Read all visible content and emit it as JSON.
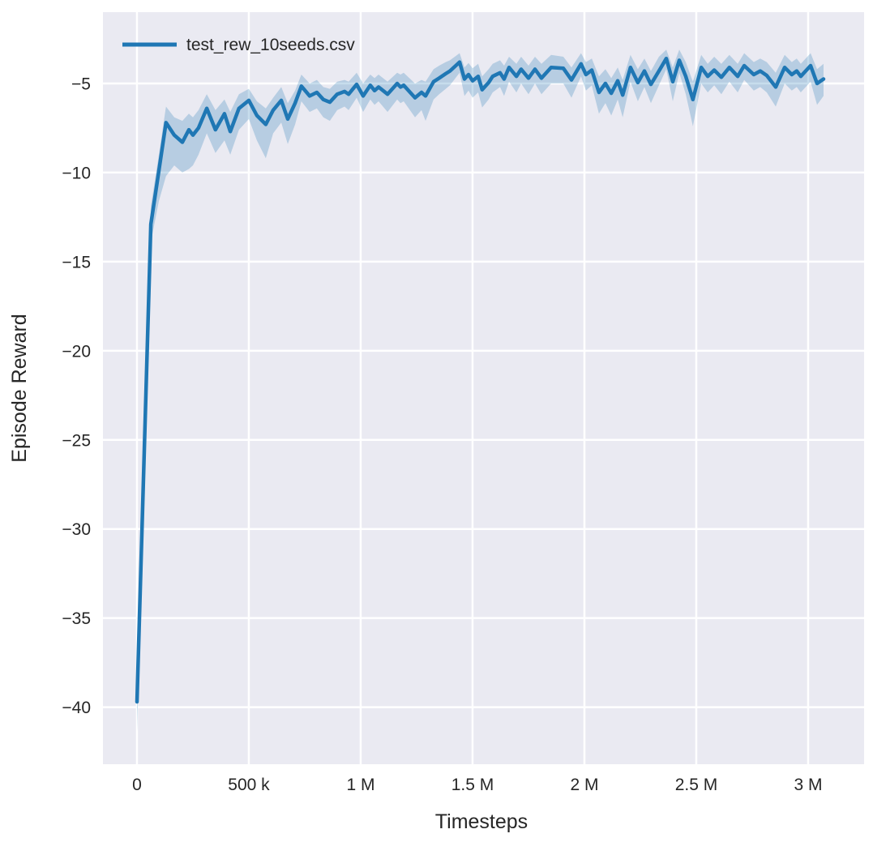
{
  "chart_data": {
    "type": "line",
    "title": "",
    "xlabel": "Timesteps",
    "ylabel": "Episode Reward",
    "grid": true,
    "legend": {
      "position": "upper-left",
      "entries": [
        {
          "label": "test_rew_10seeds.csv",
          "color": "#1f77b4"
        }
      ]
    },
    "axes": {
      "background_color": "#eaeaf2",
      "grid_color": "#ffffff",
      "xlim": [
        -152000,
        3250000
      ],
      "ylim": [
        -43.2,
        -1.0
      ],
      "x_ticks": [
        {
          "value": 0,
          "label": "0"
        },
        {
          "value": 500000,
          "label": "500 k"
        },
        {
          "value": 1000000,
          "label": "1 M"
        },
        {
          "value": 1500000,
          "label": "1.5 M"
        },
        {
          "value": 2000000,
          "label": "2 M"
        },
        {
          "value": 2500000,
          "label": "2.5 M"
        },
        {
          "value": 3000000,
          "label": "3 M"
        }
      ],
      "y_ticks": [
        {
          "value": -5,
          "label": "−5"
        },
        {
          "value": -10,
          "label": "−10"
        },
        {
          "value": -15,
          "label": "−15"
        },
        {
          "value": -20,
          "label": "−20"
        },
        {
          "value": -25,
          "label": "−25"
        },
        {
          "value": -30,
          "label": "−30"
        },
        {
          "value": -35,
          "label": "−35"
        },
        {
          "value": -40,
          "label": "−40"
        }
      ]
    },
    "series": [
      {
        "name": "test_rew_10seeds.csv",
        "color": "#1f77b4",
        "band_alpha": 0.25,
        "points_format": [
          "timesteps",
          "mean",
          "band_low",
          "band_high"
        ],
        "points": [
          [
            0,
            -39.7,
            -41.4,
            -39.5
          ],
          [
            62000,
            -12.9,
            -13.9,
            -11.9
          ],
          [
            98000,
            -9.9,
            -11.6,
            -9.0
          ],
          [
            130000,
            -7.2,
            -10.2,
            -6.3
          ],
          [
            167000,
            -7.9,
            -9.6,
            -6.9
          ],
          [
            203000,
            -8.3,
            -10.0,
            -7.1
          ],
          [
            232000,
            -7.6,
            -9.8,
            -6.7
          ],
          [
            250000,
            -7.9,
            -9.6,
            -6.9
          ],
          [
            275000,
            -7.5,
            -9.0,
            -6.5
          ],
          [
            312000,
            -6.4,
            -7.8,
            -5.6
          ],
          [
            351000,
            -7.6,
            -8.9,
            -6.5
          ],
          [
            391000,
            -6.7,
            -8.2,
            -5.9
          ],
          [
            417000,
            -7.7,
            -9.0,
            -6.6
          ],
          [
            456000,
            -6.4,
            -7.6,
            -5.6
          ],
          [
            500000,
            -5.95,
            -7.0,
            -5.3
          ],
          [
            536000,
            -6.8,
            -8.2,
            -6.0
          ],
          [
            576000,
            -7.3,
            -9.2,
            -6.4
          ],
          [
            609000,
            -6.5,
            -7.8,
            -5.8
          ],
          [
            645000,
            -5.95,
            -7.2,
            -5.2
          ],
          [
            674000,
            -7.0,
            -8.4,
            -6.1
          ],
          [
            707000,
            -6.1,
            -7.3,
            -5.4
          ],
          [
            735000,
            -5.15,
            -6.0,
            -4.5
          ],
          [
            772000,
            -5.7,
            -6.6,
            -5.0
          ],
          [
            804000,
            -5.5,
            -6.4,
            -4.8
          ],
          [
            833000,
            -5.9,
            -6.9,
            -5.2
          ],
          [
            862000,
            -6.05,
            -7.1,
            -5.3
          ],
          [
            895000,
            -5.6,
            -6.5,
            -4.9
          ],
          [
            928000,
            -5.45,
            -6.3,
            -4.8
          ],
          [
            946000,
            -5.6,
            -6.5,
            -4.9
          ],
          [
            982000,
            -5.05,
            -5.8,
            -4.4
          ],
          [
            1011000,
            -5.7,
            -6.6,
            -5.0
          ],
          [
            1043000,
            -5.1,
            -5.9,
            -4.5
          ],
          [
            1062000,
            -5.4,
            -6.2,
            -4.7
          ],
          [
            1080000,
            -5.2,
            -6.0,
            -4.5
          ],
          [
            1120000,
            -5.6,
            -6.6,
            -4.9
          ],
          [
            1163000,
            -5.0,
            -5.9,
            -4.4
          ],
          [
            1178000,
            -5.2,
            -6.1,
            -4.5
          ],
          [
            1192000,
            -5.1,
            -6.0,
            -4.4
          ],
          [
            1243000,
            -5.8,
            -6.9,
            -5.0
          ],
          [
            1272000,
            -5.5,
            -6.5,
            -4.8
          ],
          [
            1290000,
            -5.7,
            -7.1,
            -4.9
          ],
          [
            1326000,
            -4.9,
            -5.9,
            -4.2
          ],
          [
            1351000,
            -4.7,
            -5.6,
            -4.0
          ],
          [
            1380000,
            -4.45,
            -5.3,
            -3.8
          ],
          [
            1399000,
            -4.3,
            -5.1,
            -3.7
          ],
          [
            1442000,
            -3.8,
            -4.4,
            -3.3
          ],
          [
            1464000,
            -4.75,
            -5.7,
            -4.1
          ],
          [
            1482000,
            -4.5,
            -5.4,
            -3.85
          ],
          [
            1500000,
            -4.85,
            -5.8,
            -4.15
          ],
          [
            1525000,
            -4.6,
            -5.5,
            -3.9
          ],
          [
            1543000,
            -5.35,
            -6.35,
            -4.6
          ],
          [
            1572000,
            -4.95,
            -5.9,
            -4.2
          ],
          [
            1590000,
            -4.6,
            -5.5,
            -3.9
          ],
          [
            1623000,
            -4.4,
            -5.2,
            -3.7
          ],
          [
            1641000,
            -4.75,
            -5.7,
            -4.0
          ],
          [
            1663000,
            -4.1,
            -4.9,
            -3.5
          ],
          [
            1696000,
            -4.6,
            -5.5,
            -3.9
          ],
          [
            1717000,
            -4.2,
            -5.0,
            -3.5
          ],
          [
            1750000,
            -4.7,
            -5.6,
            -4.0
          ],
          [
            1779000,
            -4.2,
            -5.0,
            -3.5
          ],
          [
            1808000,
            -4.7,
            -5.6,
            -3.9
          ],
          [
            1851000,
            -4.1,
            -5.0,
            -3.4
          ],
          [
            1906000,
            -4.15,
            -5.0,
            -3.5
          ],
          [
            1942000,
            -4.8,
            -5.8,
            -4.1
          ],
          [
            1985000,
            -3.9,
            -4.6,
            -3.3
          ],
          [
            2007000,
            -4.5,
            -5.4,
            -3.8
          ],
          [
            2033000,
            -4.25,
            -5.1,
            -3.6
          ],
          [
            2065000,
            -5.5,
            -6.7,
            -4.6
          ],
          [
            2094000,
            -5.0,
            -6.1,
            -4.2
          ],
          [
            2120000,
            -5.55,
            -6.8,
            -4.7
          ],
          [
            2149000,
            -4.85,
            -5.9,
            -4.1
          ],
          [
            2171000,
            -5.65,
            -6.9,
            -4.8
          ],
          [
            2206000,
            -4.1,
            -4.9,
            -3.4
          ],
          [
            2239000,
            -4.95,
            -6.0,
            -4.2
          ],
          [
            2268000,
            -4.3,
            -5.2,
            -3.6
          ],
          [
            2297000,
            -5.05,
            -6.1,
            -4.3
          ],
          [
            2333000,
            -4.3,
            -5.1,
            -3.5
          ],
          [
            2366000,
            -3.6,
            -4.2,
            -3.1
          ],
          [
            2395000,
            -4.9,
            -6.0,
            -4.1
          ],
          [
            2424000,
            -3.7,
            -4.4,
            -3.1
          ],
          [
            2453000,
            -4.6,
            -5.6,
            -3.8
          ],
          [
            2485000,
            -5.9,
            -7.4,
            -4.9
          ],
          [
            2522000,
            -4.1,
            -5.0,
            -3.4
          ],
          [
            2551000,
            -4.6,
            -5.5,
            -3.9
          ],
          [
            2580000,
            -4.25,
            -5.1,
            -3.5
          ],
          [
            2612000,
            -4.65,
            -5.6,
            -3.9
          ],
          [
            2648000,
            -4.1,
            -4.9,
            -3.4
          ],
          [
            2685000,
            -4.6,
            -5.5,
            -3.9
          ],
          [
            2714000,
            -4.0,
            -4.8,
            -3.3
          ],
          [
            2757000,
            -4.5,
            -5.4,
            -3.8
          ],
          [
            2786000,
            -4.3,
            -5.2,
            -3.6
          ],
          [
            2815000,
            -4.55,
            -5.5,
            -3.8
          ],
          [
            2855000,
            -5.2,
            -6.3,
            -4.4
          ],
          [
            2895000,
            -4.1,
            -5.0,
            -3.4
          ],
          [
            2927000,
            -4.5,
            -5.4,
            -3.8
          ],
          [
            2949000,
            -4.3,
            -5.2,
            -3.6
          ],
          [
            2967000,
            -4.6,
            -5.5,
            -3.9
          ],
          [
            3011000,
            -4.0,
            -4.9,
            -3.3
          ],
          [
            3040000,
            -5.0,
            -6.2,
            -4.2
          ],
          [
            3069000,
            -4.75,
            -5.7,
            -3.9
          ]
        ]
      }
    ]
  },
  "style": {
    "text_color": "#262626",
    "line_width": 4.5,
    "grid_line_width": 2.5
  }
}
